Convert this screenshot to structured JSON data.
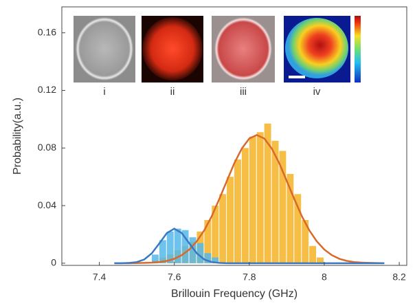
{
  "chart_data": {
    "type": "histogram",
    "xlabel": "Brillouin Frequency (GHz)",
    "ylabel": "Probability(a.u.)",
    "xlim": [
      7.3,
      8.22
    ],
    "ylim": [
      -0.0015,
      0.178
    ],
    "xticks": [
      7.4,
      7.6,
      7.8,
      8,
      8.2
    ],
    "yticks": [
      0,
      0.04,
      0.08,
      0.12,
      0.16
    ],
    "inset_labels": [
      "i",
      "ii",
      "iii",
      "iv"
    ],
    "histograms": [
      {
        "color": "#f5b731",
        "bins": [
          7.54,
          7.56,
          7.58,
          7.6,
          7.62,
          7.64,
          7.66,
          7.68,
          7.7,
          7.72,
          7.74,
          7.76,
          7.78,
          7.8,
          7.82,
          7.84,
          7.86,
          7.88,
          7.9,
          7.92,
          7.94,
          7.96,
          7.98,
          8.0
        ],
        "counts": [
          0.002,
          0.004,
          0.006,
          0.009,
          0.012,
          0.015,
          0.022,
          0.03,
          0.04,
          0.048,
          0.06,
          0.072,
          0.08,
          0.088,
          0.091,
          0.097,
          0.085,
          0.078,
          0.062,
          0.048,
          0.03,
          0.012,
          0.004
        ]
      },
      {
        "color": "#55b8ea",
        "bins": [
          7.54,
          7.56,
          7.58,
          7.6,
          7.62,
          7.64,
          7.66,
          7.68,
          7.7,
          7.72
        ],
        "counts": [
          0.006,
          0.016,
          0.022,
          0.024,
          0.023,
          0.018,
          0.014,
          0.007,
          0.004
        ]
      }
    ],
    "curve_x": [
      7.44,
      7.46,
      7.48,
      7.5,
      7.52,
      7.54,
      7.56,
      7.58,
      7.6,
      7.62,
      7.64,
      7.66,
      7.68,
      7.7,
      7.72,
      7.74,
      7.76,
      7.78,
      7.8,
      7.82,
      7.84,
      7.86,
      7.88,
      7.9,
      7.92,
      7.94,
      7.96,
      7.98,
      8.0,
      8.02,
      8.04,
      8.06,
      8.08,
      8.1,
      8.12,
      8.14,
      8.16
    ],
    "series": [
      {
        "color": "#d9682a",
        "values": [
          0,
          0,
          0,
          0.0001,
          0.0002,
          0.0004,
          0.0008,
          0.0016,
          0.0031,
          0.0056,
          0.0095,
          0.0152,
          0.0229,
          0.0328,
          0.0446,
          0.0571,
          0.0694,
          0.0796,
          0.0866,
          0.089,
          0.0866,
          0.0796,
          0.0694,
          0.0571,
          0.0446,
          0.0328,
          0.0229,
          0.0152,
          0.0095,
          0.0056,
          0.0031,
          0.0016,
          0.0008,
          0.0004,
          0.0002,
          0.0001,
          0
        ]
      },
      {
        "color": "#3a78c2",
        "values": [
          0,
          0,
          0.0002,
          0.0008,
          0.0026,
          0.0069,
          0.0138,
          0.0209,
          0.024,
          0.0209,
          0.0138,
          0.0069,
          0.0026,
          0.0008,
          0.0002,
          0,
          0,
          0,
          0,
          0,
          0,
          0,
          0,
          0,
          0,
          0,
          0,
          0,
          0,
          0,
          0,
          0,
          0,
          0,
          0,
          0,
          0
        ]
      }
    ]
  }
}
